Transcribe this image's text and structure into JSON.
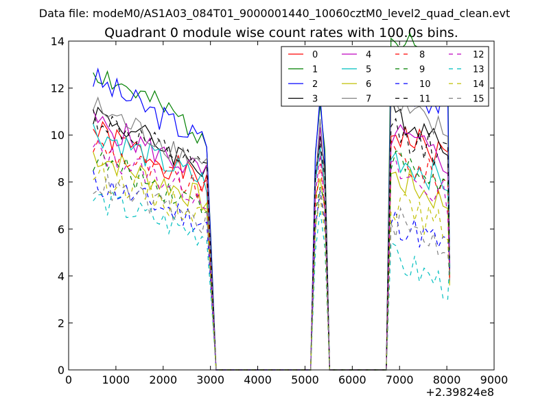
{
  "chart_data": {
    "type": "line",
    "suptitle": "Data file: modeM0/AS1A03_084T01_9000001440_10060cztM0_level2_quad_clean.evt",
    "title": "Quadrant 0 module wise count rates with 100.0s bins.",
    "xlabel": "",
    "ylabel": "",
    "x_offset_label": "+2.39824e8",
    "xlim": [
      0,
      9000
    ],
    "ylim": [
      0,
      14
    ],
    "x_ticks": [
      "0",
      "1000",
      "2000",
      "3000",
      "4000",
      "5000",
      "6000",
      "7000",
      "8000",
      "9000"
    ],
    "y_ticks": [
      "0",
      "2",
      "4",
      "6",
      "8",
      "10",
      "12",
      "14"
    ],
    "legend_location": "top-right",
    "legend_columns": 4,
    "x": [
      520,
      620,
      720,
      820,
      920,
      1020,
      1120,
      1220,
      1320,
      1420,
      1520,
      1620,
      1720,
      1820,
      1920,
      2020,
      2120,
      2220,
      2320,
      2420,
      2520,
      2620,
      2720,
      2820,
      2920,
      3020,
      3120,
      3220,
      5120,
      5220,
      5320,
      5420,
      5520,
      6720,
      6820,
      6920,
      7020,
      7120,
      7220,
      7320,
      7420,
      7520,
      7620,
      7720,
      7820,
      7920,
      8020,
      8060
    ],
    "series": [
      {
        "name": "0",
        "color": "#ff0000",
        "dash": "solid",
        "level": 10.2,
        "amp2": 1.0,
        "seed": 1
      },
      {
        "name": "1",
        "color": "#008000",
        "dash": "solid",
        "level": 12.8,
        "amp2": 1.1,
        "seed": 2
      },
      {
        "name": "2",
        "color": "#0000ff",
        "dash": "solid",
        "level": 12.4,
        "amp2": 1.0,
        "seed": 3
      },
      {
        "name": "3",
        "color": "#000000",
        "dash": "solid",
        "level": 11.0,
        "amp2": 1.0,
        "seed": 4
      },
      {
        "name": "4",
        "color": "#bf00bf",
        "dash": "solid",
        "level": 10.6,
        "amp2": 0.95,
        "seed": 5
      },
      {
        "name": "5",
        "color": "#00bfbf",
        "dash": "solid",
        "level": 10.2,
        "amp2": 0.9,
        "seed": 6
      },
      {
        "name": "6",
        "color": "#bfbf00",
        "dash": "solid",
        "level": 9.2,
        "amp2": 0.9,
        "seed": 7
      },
      {
        "name": "7",
        "color": "#808080",
        "dash": "solid",
        "level": 11.2,
        "amp2": 1.0,
        "seed": 8
      },
      {
        "name": "8",
        "color": "#ff0000",
        "dash": "dashed",
        "level": 9.6,
        "amp2": 0.95,
        "seed": 9
      },
      {
        "name": "9",
        "color": "#008000",
        "dash": "dashed",
        "level": 9.0,
        "amp2": 1.0,
        "seed": 10
      },
      {
        "name": "10",
        "color": "#0000ff",
        "dash": "dashed",
        "level": 8.0,
        "amp2": 0.8,
        "seed": 11
      },
      {
        "name": "11",
        "color": "#000000",
        "dash": "dashed",
        "level": 10.8,
        "amp2": 0.95,
        "seed": 12
      },
      {
        "name": "12",
        "color": "#bf00bf",
        "dash": "dashed",
        "level": 9.4,
        "amp2": 0.9,
        "seed": 13
      },
      {
        "name": "13",
        "color": "#00bfbf",
        "dash": "dashed",
        "level": 7.3,
        "amp2": 0.65,
        "seed": 14
      },
      {
        "name": "14",
        "color": "#bfbf00",
        "dash": "dashed",
        "level": 8.4,
        "amp2": 0.85,
        "seed": 15
      },
      {
        "name": "15",
        "color": "#808080",
        "dash": "dashed",
        "level": 8.0,
        "amp2": 0.8,
        "seed": 16
      }
    ]
  }
}
